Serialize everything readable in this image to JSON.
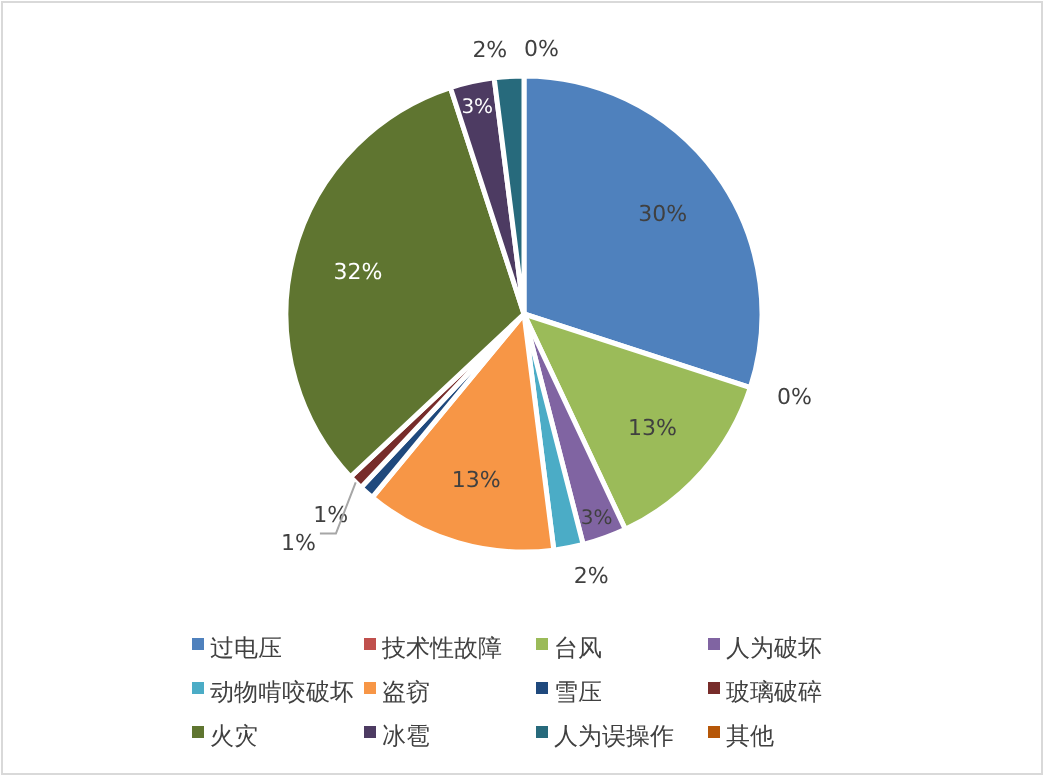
{
  "chart_data": {
    "type": "pie",
    "categories": [
      "过电压",
      "技术性故障",
      "台风",
      "人为破坏",
      "动物啃咬破坏",
      "盗窃",
      "雪压",
      "玻璃破碎",
      "火灾",
      "冰雹",
      "人为误操作",
      "其他"
    ],
    "values": [
      30,
      0,
      13,
      3,
      2,
      13,
      1,
      1,
      32,
      3,
      2,
      0
    ],
    "colors": [
      "#4f81bd",
      "#c0504d",
      "#9bbb59",
      "#8064a2",
      "#4bacc6",
      "#f79646",
      "#1f497d",
      "#772c2a",
      "#5f7530",
      "#4d3b62",
      "#276a7c",
      "#b65708"
    ],
    "value_labels": [
      "30%",
      "0%",
      "13%",
      "3%",
      "2%",
      "13%",
      "1%",
      "1%",
      "32%",
      "3%",
      "2%",
      "0%"
    ],
    "legend": "bottom"
  }
}
